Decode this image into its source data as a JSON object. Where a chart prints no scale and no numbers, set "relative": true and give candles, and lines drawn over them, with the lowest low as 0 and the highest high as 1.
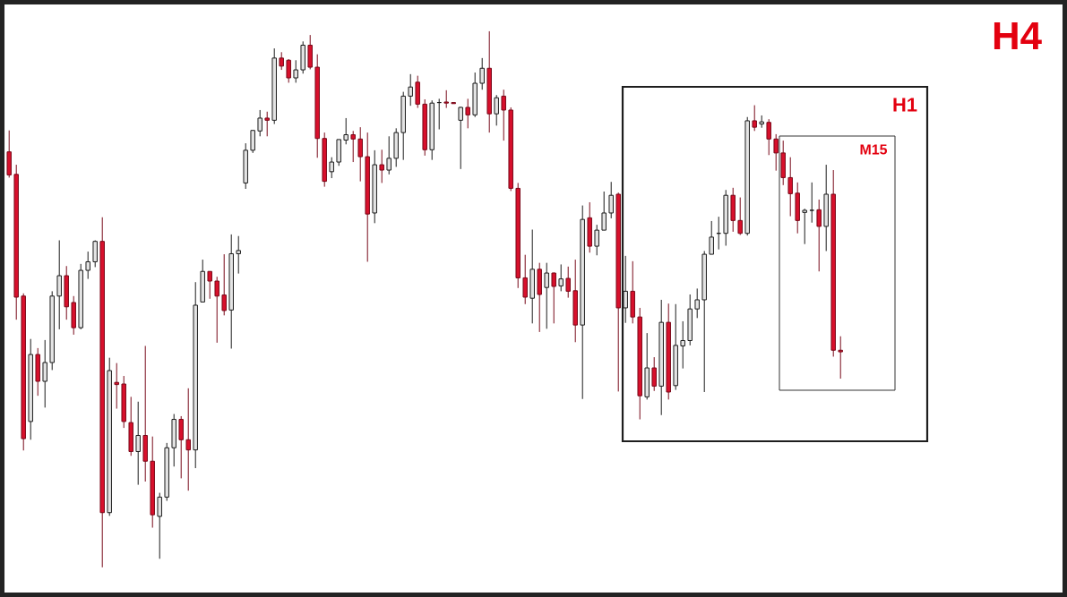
{
  "chart_data": {
    "type": "candlestick",
    "relative": true,
    "annotations": [
      "H4",
      "H1",
      "M15"
    ],
    "categories": [
      null,
      null,
      null,
      null,
      null,
      null,
      null,
      null,
      null,
      null,
      null,
      null,
      null,
      null,
      null,
      null,
      null,
      null,
      null,
      null,
      null,
      null,
      null,
      null,
      null,
      null,
      null,
      null,
      null,
      null,
      null,
      null,
      null,
      null,
      null,
      null,
      null,
      null,
      null,
      null,
      null,
      null,
      null,
      null,
      null,
      null,
      null,
      null,
      null,
      null,
      null,
      null,
      null,
      null,
      null,
      null,
      null,
      null,
      null,
      null,
      null,
      null,
      null,
      null,
      null,
      null,
      null,
      null,
      null,
      null,
      null,
      null,
      null,
      null,
      null,
      null,
      null,
      null,
      null,
      null,
      null,
      null,
      null,
      null,
      null,
      null,
      null,
      null,
      null,
      null,
      null,
      null,
      null,
      null,
      null,
      null,
      null,
      null,
      null,
      null,
      null,
      null,
      null,
      null,
      null,
      null,
      null,
      null,
      null,
      null,
      null,
      null,
      null,
      null,
      null,
      null,
      null
    ],
    "ohlc": [
      [
        0.775,
        0.815,
        0.727,
        0.732
      ],
      [
        0.733,
        0.751,
        0.462,
        0.504
      ],
      [
        0.506,
        0.511,
        0.218,
        0.24
      ],
      [
        0.272,
        0.426,
        0.238,
        0.397
      ],
      [
        0.397,
        0.409,
        0.32,
        0.347
      ],
      [
        0.347,
        0.424,
        0.298,
        0.382
      ],
      [
        0.382,
        0.515,
        0.368,
        0.506
      ],
      [
        0.506,
        0.61,
        0.444,
        0.544
      ],
      [
        0.544,
        0.562,
        0.462,
        0.486
      ],
      [
        0.494,
        0.506,
        0.434,
        0.447
      ],
      [
        0.447,
        0.566,
        0.444,
        0.554
      ],
      [
        0.554,
        0.589,
        0.538,
        0.57
      ],
      [
        0.57,
        0.61,
        0.56,
        0.608
      ],
      [
        0.608,
        0.653,
        0,
        0.102
      ],
      [
        0.102,
        0.391,
        0.096,
        0.367
      ],
      [
        0.345,
        0.381,
        0.296,
        0.341
      ],
      [
        0.342,
        0.357,
        0.26,
        0.272
      ],
      [
        0.27,
        0.318,
        0.208,
        0.216
      ],
      [
        0.216,
        0.309,
        0.154,
        0.246
      ],
      [
        0.246,
        0.413,
        0.16,
        0.198
      ],
      [
        0.198,
        0.244,
        0.074,
        0.098
      ],
      [
        0.095,
        0.139,
        0.016,
        0.131
      ],
      [
        0.131,
        0.232,
        0.124,
        0.223
      ],
      [
        0.223,
        0.286,
        0.188,
        0.276
      ],
      [
        0.276,
        0.282,
        0.166,
        0.238
      ],
      [
        0.238,
        0.334,
        0.143,
        0.219
      ],
      [
        0.219,
        0.532,
        0.185,
        0.489
      ],
      [
        0.495,
        0.574,
        0.495,
        0.552
      ],
      [
        0.552,
        0.552,
        0.501,
        0.534
      ],
      [
        0.534,
        0.542,
        0.419,
        0.506
      ],
      [
        0.508,
        0.584,
        0.47,
        0.479
      ],
      [
        0.48,
        0.621,
        0.408,
        0.585
      ],
      [
        0.585,
        0.618,
        0.548,
        0.591
      ],
      [
        0.717,
        0.791,
        0.706,
        0.778
      ],
      [
        0.778,
        0.815,
        0.773,
        0.815
      ],
      [
        0.814,
        0.853,
        0.804,
        0.838
      ],
      [
        0.838,
        0.85,
        0.804,
        0.834
      ],
      [
        0.834,
        0.968,
        0.827,
        0.95
      ],
      [
        0.95,
        0.961,
        0.928,
        0.935
      ],
      [
        0.946,
        0.948,
        0.904,
        0.913
      ],
      [
        0.913,
        0.946,
        0.904,
        0.928
      ],
      [
        0.928,
        0.981,
        0.921,
        0.974
      ],
      [
        0.974,
        0.993,
        0.929,
        0.933
      ],
      [
        0.933,
        0.957,
        0.764,
        0.8
      ],
      [
        0.8,
        0.811,
        0.71,
        0.72
      ],
      [
        0.738,
        0.765,
        0.726,
        0.756
      ],
      [
        0.756,
        0.798,
        0.749,
        0.798
      ],
      [
        0.797,
        0.838,
        0.789,
        0.807
      ],
      [
        0.807,
        0.814,
        0.756,
        0.799
      ],
      [
        0.799,
        0.821,
        0.72,
        0.766
      ],
      [
        0.766,
        0.811,
        0.57,
        0.659
      ],
      [
        0.661,
        0.778,
        0.642,
        0.751
      ],
      [
        0.751,
        0.779,
        0.717,
        0.741
      ],
      [
        0.741,
        0.804,
        0.733,
        0.763
      ],
      [
        0.763,
        0.819,
        0.747,
        0.811
      ],
      [
        0.811,
        0.887,
        0.76,
        0.879
      ],
      [
        0.879,
        0.92,
        0.861,
        0.896
      ],
      [
        0.905,
        0.917,
        0.857,
        0.864
      ],
      [
        0.864,
        0.873,
        0.768,
        0.779
      ],
      [
        0.779,
        0.871,
        0.76,
        0.866
      ],
      [
        0.867,
        0.874,
        0.817,
        0.867
      ],
      [
        0.868,
        0.89,
        0.857,
        0.866
      ],
      [
        0.867,
        0.867,
        0.865,
        0.865
      ],
      [
        0.834,
        0.859,
        0.743,
        0.858
      ],
      [
        0.858,
        0.874,
        0.819,
        0.844
      ],
      [
        0.844,
        0.923,
        0.84,
        0.903
      ],
      [
        0.903,
        0.95,
        0.891,
        0.931
      ],
      [
        0.931,
        1.0,
        0.811,
        0.846
      ],
      [
        0.846,
        0.881,
        0.824,
        0.876
      ],
      [
        0.879,
        0.891,
        0.796,
        0.853
      ],
      [
        0.853,
        0.858,
        0.702,
        0.707
      ],
      [
        0.707,
        0.717,
        0.521,
        0.54
      ],
      [
        0.54,
        0.583,
        0.491,
        0.504
      ],
      [
        0.502,
        0.63,
        0.455,
        0.556
      ],
      [
        0.556,
        0.568,
        0.439,
        0.509
      ],
      [
        0.522,
        0.568,
        0.445,
        0.549
      ],
      [
        0.549,
        0.55,
        0.455,
        0.524
      ],
      [
        0.525,
        0.565,
        0.515,
        0.538
      ],
      [
        0.539,
        0.561,
        0.503,
        0.515
      ],
      [
        0.516,
        0.574,
        0.42,
        0.452
      ],
      [
        0.452,
        0.675,
        0.314,
        0.649
      ],
      [
        0.652,
        0.681,
        0.587,
        0.599
      ],
      [
        0.599,
        0.639,
        0.582,
        0.629
      ],
      [
        0.629,
        0.701,
        0.629,
        0.661
      ],
      [
        0.661,
        0.719,
        0.651,
        0.694
      ],
      [
        0.696,
        0.699,
        0.328,
        0.484
      ],
      [
        0.484,
        0.581,
        0.456,
        0.515
      ],
      [
        0.515,
        0.571,
        0.455,
        0.467
      ],
      [
        0.467,
        0.484,
        0.276,
        0.32
      ],
      [
        0.318,
        0.437,
        0.313,
        0.372
      ],
      [
        0.372,
        0.392,
        0.329,
        0.338
      ],
      [
        0.338,
        0.499,
        0.284,
        0.457
      ],
      [
        0.457,
        0.492,
        0.313,
        0.327
      ],
      [
        0.339,
        0.491,
        0.331,
        0.414
      ],
      [
        0.413,
        0.459,
        0.371,
        0.423
      ],
      [
        0.423,
        0.509,
        0.414,
        0.482
      ],
      [
        0.482,
        0.52,
        0.465,
        0.499
      ],
      [
        0.499,
        0.59,
        0.327,
        0.584
      ],
      [
        0.584,
        0.646,
        0.584,
        0.616
      ],
      [
        0.623,
        0.654,
        0.593,
        0.623
      ],
      [
        0.623,
        0.704,
        0.6,
        0.694
      ],
      [
        0.694,
        0.708,
        0.626,
        0.647
      ],
      [
        0.647,
        0.69,
        0.62,
        0.623
      ],
      [
        0.623,
        0.84,
        0.619,
        0.833
      ],
      [
        0.833,
        0.862,
        0.814,
        0.821
      ],
      [
        0.827,
        0.843,
        0.82,
        0.831
      ],
      [
        0.83,
        0.836,
        0.769,
        0.799
      ],
      [
        0.799,
        0.808,
        0.74,
        0.773
      ],
      [
        0.773,
        0.796,
        0.713,
        0.727
      ],
      [
        0.727,
        0.765,
        0.655,
        0.697
      ],
      [
        0.698,
        0.718,
        0.623,
        0.647
      ],
      [
        0.662,
        0.669,
        0.603,
        0.666
      ],
      [
        0.666,
        0.718,
        0.643,
        0.666
      ],
      [
        0.667,
        0.686,
        0.552,
        0.636
      ],
      [
        0.636,
        0.751,
        0.59,
        0.696
      ],
      [
        0.696,
        0.741,
        0.393,
        0.405
      ],
      [
        0.405,
        0.431,
        0.352,
        0.402
      ]
    ],
    "colors": [
      "#d8102c",
      "#d8102c",
      "#d8102c",
      "#e4e4e4",
      "#d8102c",
      "#e4e4e4",
      "#e4e4e4",
      "#e4e4e4",
      "#d8102c",
      "#d8102c",
      "#e4e4e4",
      "#e4e4e4",
      "#e4e4e4",
      "#d8102c",
      "#e4e4e4",
      "#d8102c",
      "#d8102c",
      "#d8102c",
      "#e4e4e4",
      "#d8102c",
      "#d8102c",
      "#e4e4e4",
      "#e4e4e4",
      "#e4e4e4",
      "#d8102c",
      "#d8102c",
      "#e4e4e4",
      "#e4e4e4",
      "#d8102c",
      "#d8102c",
      "#d8102c",
      "#e4e4e4",
      "#e4e4e4",
      "#e4e4e4",
      "#e4e4e4",
      "#e4e4e4",
      "#d8102c",
      "#e4e4e4",
      "#d8102c",
      "#d8102c",
      "#e4e4e4",
      "#e4e4e4",
      "#d8102c",
      "#d8102c",
      "#d8102c",
      "#e4e4e4",
      "#e4e4e4",
      "#e4e4e4",
      "#d8102c",
      "#d8102c",
      "#d8102c",
      "#e4e4e4",
      "#d8102c",
      "#e4e4e4",
      "#e4e4e4",
      "#e4e4e4",
      "#e4e4e4",
      "#d8102c",
      "#d8102c",
      "#e4e4e4",
      "#1a1a1a",
      "#d8102c",
      "#d8102c",
      "#e4e4e4",
      "#d8102c",
      "#e4e4e4",
      "#e4e4e4",
      "#d8102c",
      "#e4e4e4",
      "#d8102c",
      "#d8102c",
      "#d8102c",
      "#d8102c",
      "#e4e4e4",
      "#d8102c",
      "#e4e4e4",
      "#d8102c",
      "#e4e4e4",
      "#d8102c",
      "#d8102c",
      "#e4e4e4",
      "#d8102c",
      "#e4e4e4",
      "#e4e4e4",
      "#e4e4e4",
      "#d8102c",
      "#e4e4e4",
      "#d8102c",
      "#d8102c",
      "#e4e4e4",
      "#d8102c",
      "#e4e4e4",
      "#d8102c",
      "#e4e4e4",
      "#e4e4e4",
      "#e4e4e4",
      "#e4e4e4",
      "#e4e4e4",
      "#e4e4e4",
      "#1a1a1a",
      "#e4e4e4",
      "#d8102c",
      "#d8102c",
      "#e4e4e4",
      "#d8102c",
      "#e4e4e4",
      "#d8102c",
      "#d8102c",
      "#d8102c",
      "#d8102c",
      "#d8102c",
      "#e4e4e4",
      "#1a1a1a",
      "#d8102c",
      "#e4e4e4",
      "#d8102c",
      "#d8102c"
    ]
  }
}
